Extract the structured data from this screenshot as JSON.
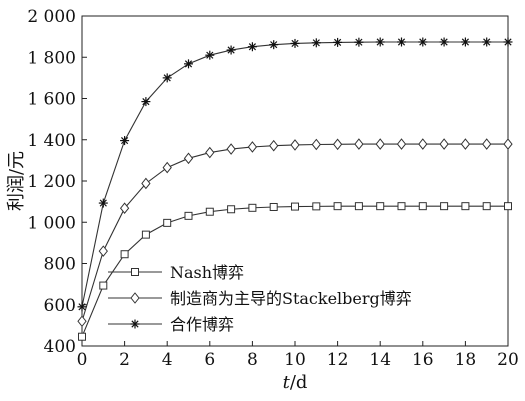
{
  "chart_data": {
    "type": "line",
    "x": [
      0,
      1,
      2,
      3,
      4,
      5,
      6,
      7,
      8,
      9,
      10,
      11,
      12,
      13,
      14,
      15,
      16,
      17,
      18,
      19,
      20
    ],
    "xlabel": "t/d",
    "ylabel": "利润/元",
    "xlim": [
      0,
      20
    ],
    "ylim": [
      400,
      2000
    ],
    "xticks": [
      0,
      2,
      4,
      6,
      8,
      10,
      12,
      14,
      16,
      18,
      20
    ],
    "xtick_labels": [
      "0",
      "2",
      "4",
      "6",
      "8",
      "10",
      "12",
      "14",
      "16",
      "18",
      "20"
    ],
    "yticks": [
      400,
      600,
      800,
      1000,
      1200,
      1400,
      1600,
      1800,
      2000
    ],
    "ytick_labels": [
      "400",
      "600",
      "800",
      "1 000",
      "1 200",
      "1 400",
      "1 600",
      "1 800",
      "2 000"
    ],
    "grid": false,
    "legend_position": "bottom-left",
    "line_color": "#333333",
    "series": [
      {
        "name": "Nash博弈",
        "marker": "square",
        "values": [
          445,
          693,
          845,
          940,
          997,
          1031,
          1051,
          1063,
          1070,
          1074,
          1076,
          1077,
          1078,
          1078,
          1078,
          1078,
          1078,
          1078,
          1078,
          1078,
          1078
        ]
      },
      {
        "name": "制造商为主导的Stackelberg博弈",
        "marker": "diamond",
        "values": [
          520,
          860,
          1068,
          1188,
          1265,
          1310,
          1338,
          1355,
          1365,
          1371,
          1375,
          1377,
          1378,
          1379,
          1379,
          1379,
          1379,
          1379,
          1379,
          1379,
          1379
        ]
      },
      {
        "name": "合作博弈",
        "marker": "asterisk",
        "values": [
          590,
          1093,
          1396,
          1585,
          1700,
          1768,
          1810,
          1835,
          1851,
          1861,
          1867,
          1870,
          1872,
          1873,
          1874,
          1874,
          1874,
          1874,
          1874,
          1874,
          1874
        ]
      }
    ]
  }
}
